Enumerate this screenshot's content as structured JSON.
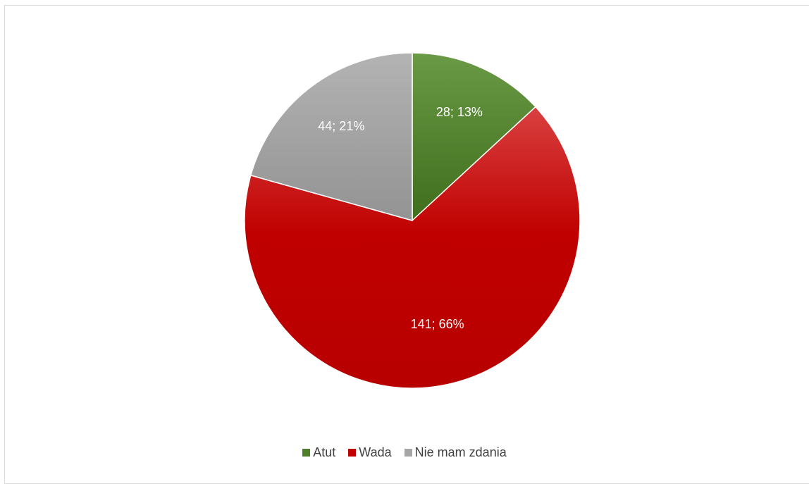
{
  "chart_data": {
    "type": "pie",
    "title": "",
    "categories": [
      "Atut",
      "Wada",
      "Nie mam zdania"
    ],
    "values": [
      28,
      141,
      44
    ],
    "percentages": [
      13,
      66,
      21
    ],
    "data_labels": [
      "28; 13%",
      "141; 66%",
      "44; 21%"
    ],
    "colors": [
      "#4f7f2a",
      "#c00000",
      "#a6a6a6"
    ],
    "start_angle_deg": 0,
    "direction": "clockwise",
    "legend_position": "bottom"
  }
}
